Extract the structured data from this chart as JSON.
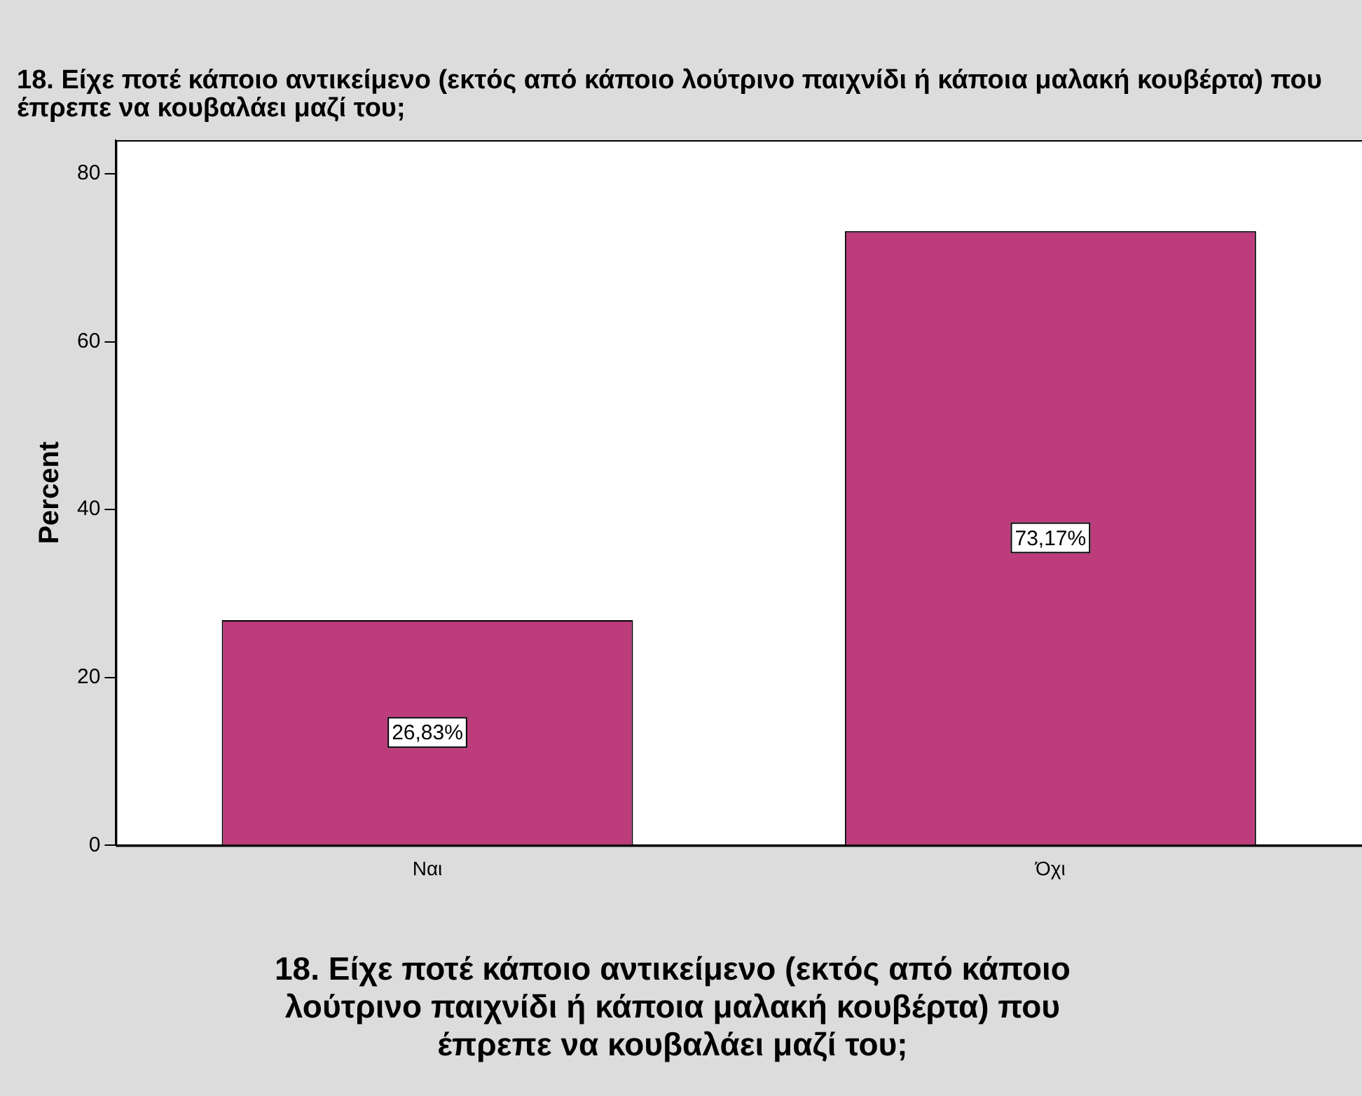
{
  "chart_data": {
    "type": "bar",
    "title": "18. Είχε ποτέ κάποιο αντικείμενο (εκτός από κάποιο λούτρινο παιχνίδι ή κάποια μαλακή κουβέρτα) που έπρεπε να κουβαλάει μαζί του;",
    "xlabel": "18. Είχε ποτέ κάποιο αντικείμενο (εκτός από κάποιο λούτρινο παιχνίδι ή κάποια μαλακή κουβέρτα) που έπρεπε να κουβαλάει μαζί του;",
    "ylabel": "Percent",
    "categories": [
      "Ναι",
      "Όχι"
    ],
    "values": [
      26.83,
      73.17
    ],
    "value_labels": [
      "26,83%",
      "73,17%"
    ],
    "color": "#bc3c7c",
    "ylim": [
      0,
      84
    ],
    "yticks": [
      0,
      20,
      40,
      60,
      80
    ],
    "grid": false,
    "legend": false
  }
}
